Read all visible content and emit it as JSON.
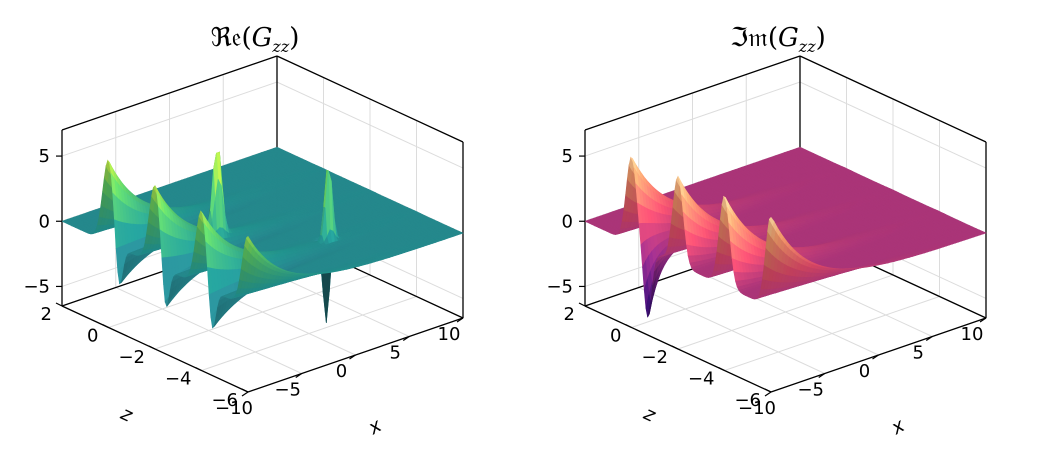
{
  "chart_data": [
    {
      "type": "surface",
      "title": "ℜ𝔢(G_zz)",
      "title_parts": {
        "op": "ℜ𝔢",
        "open": "(",
        "G": "G",
        "sub": "zz",
        "close": ")"
      },
      "xlabel": "x",
      "ylabel": "z",
      "x_ticks": [
        "−10",
        "−5",
        "0",
        "5",
        "10"
      ],
      "x_tick_values": [
        -10,
        -5,
        0,
        5,
        10
      ],
      "z_axis_ticks": [
        "−6",
        "−4",
        "−2",
        "0",
        "2"
      ],
      "z_axis_tick_values": [
        -6,
        -4,
        -2,
        0,
        2
      ],
      "value_ticks": [
        "−5",
        "0",
        "5"
      ],
      "value_tick_values": [
        -5,
        0,
        5
      ],
      "xlim": [
        -10,
        10
      ],
      "zlim": [
        -6,
        2
      ],
      "vlim": [
        -6.5,
        7
      ],
      "colormap": "viridis",
      "grid": true,
      "peak_centers_z": [
        0,
        -2,
        -4,
        -6
      ],
      "plateau_value": 0
    },
    {
      "type": "surface",
      "title": "ℑ𝔪(G_zz)",
      "title_parts": {
        "op": "ℑ𝔪",
        "open": "(",
        "G": "G",
        "sub": "zz",
        "close": ")"
      },
      "xlabel": "x",
      "ylabel": "z",
      "x_ticks": [
        "−10",
        "−5",
        "0",
        "5",
        "10"
      ],
      "x_tick_values": [
        -10,
        -5,
        0,
        5,
        10
      ],
      "z_axis_ticks": [
        "−6",
        "−4",
        "−2",
        "0",
        "2"
      ],
      "z_axis_tick_values": [
        -6,
        -4,
        -2,
        0,
        2
      ],
      "value_ticks": [
        "−5",
        "0",
        "5"
      ],
      "value_tick_values": [
        -5,
        0,
        5
      ],
      "xlim": [
        -10,
        10
      ],
      "zlim": [
        -6,
        2
      ],
      "vlim": [
        -6.5,
        7
      ],
      "colormap": "magma",
      "grid": true,
      "peak_centers_z": [
        0,
        -2,
        -4,
        -6
      ],
      "plateau_value": 0
    }
  ],
  "colors": {
    "viridis": [
      "#440154",
      "#3b528b",
      "#21918c",
      "#5ec962",
      "#fde725"
    ],
    "magma": [
      "#000004",
      "#3b0f70",
      "#8c2981",
      "#de4968",
      "#fe9f6d",
      "#fcfdbf"
    ]
  }
}
